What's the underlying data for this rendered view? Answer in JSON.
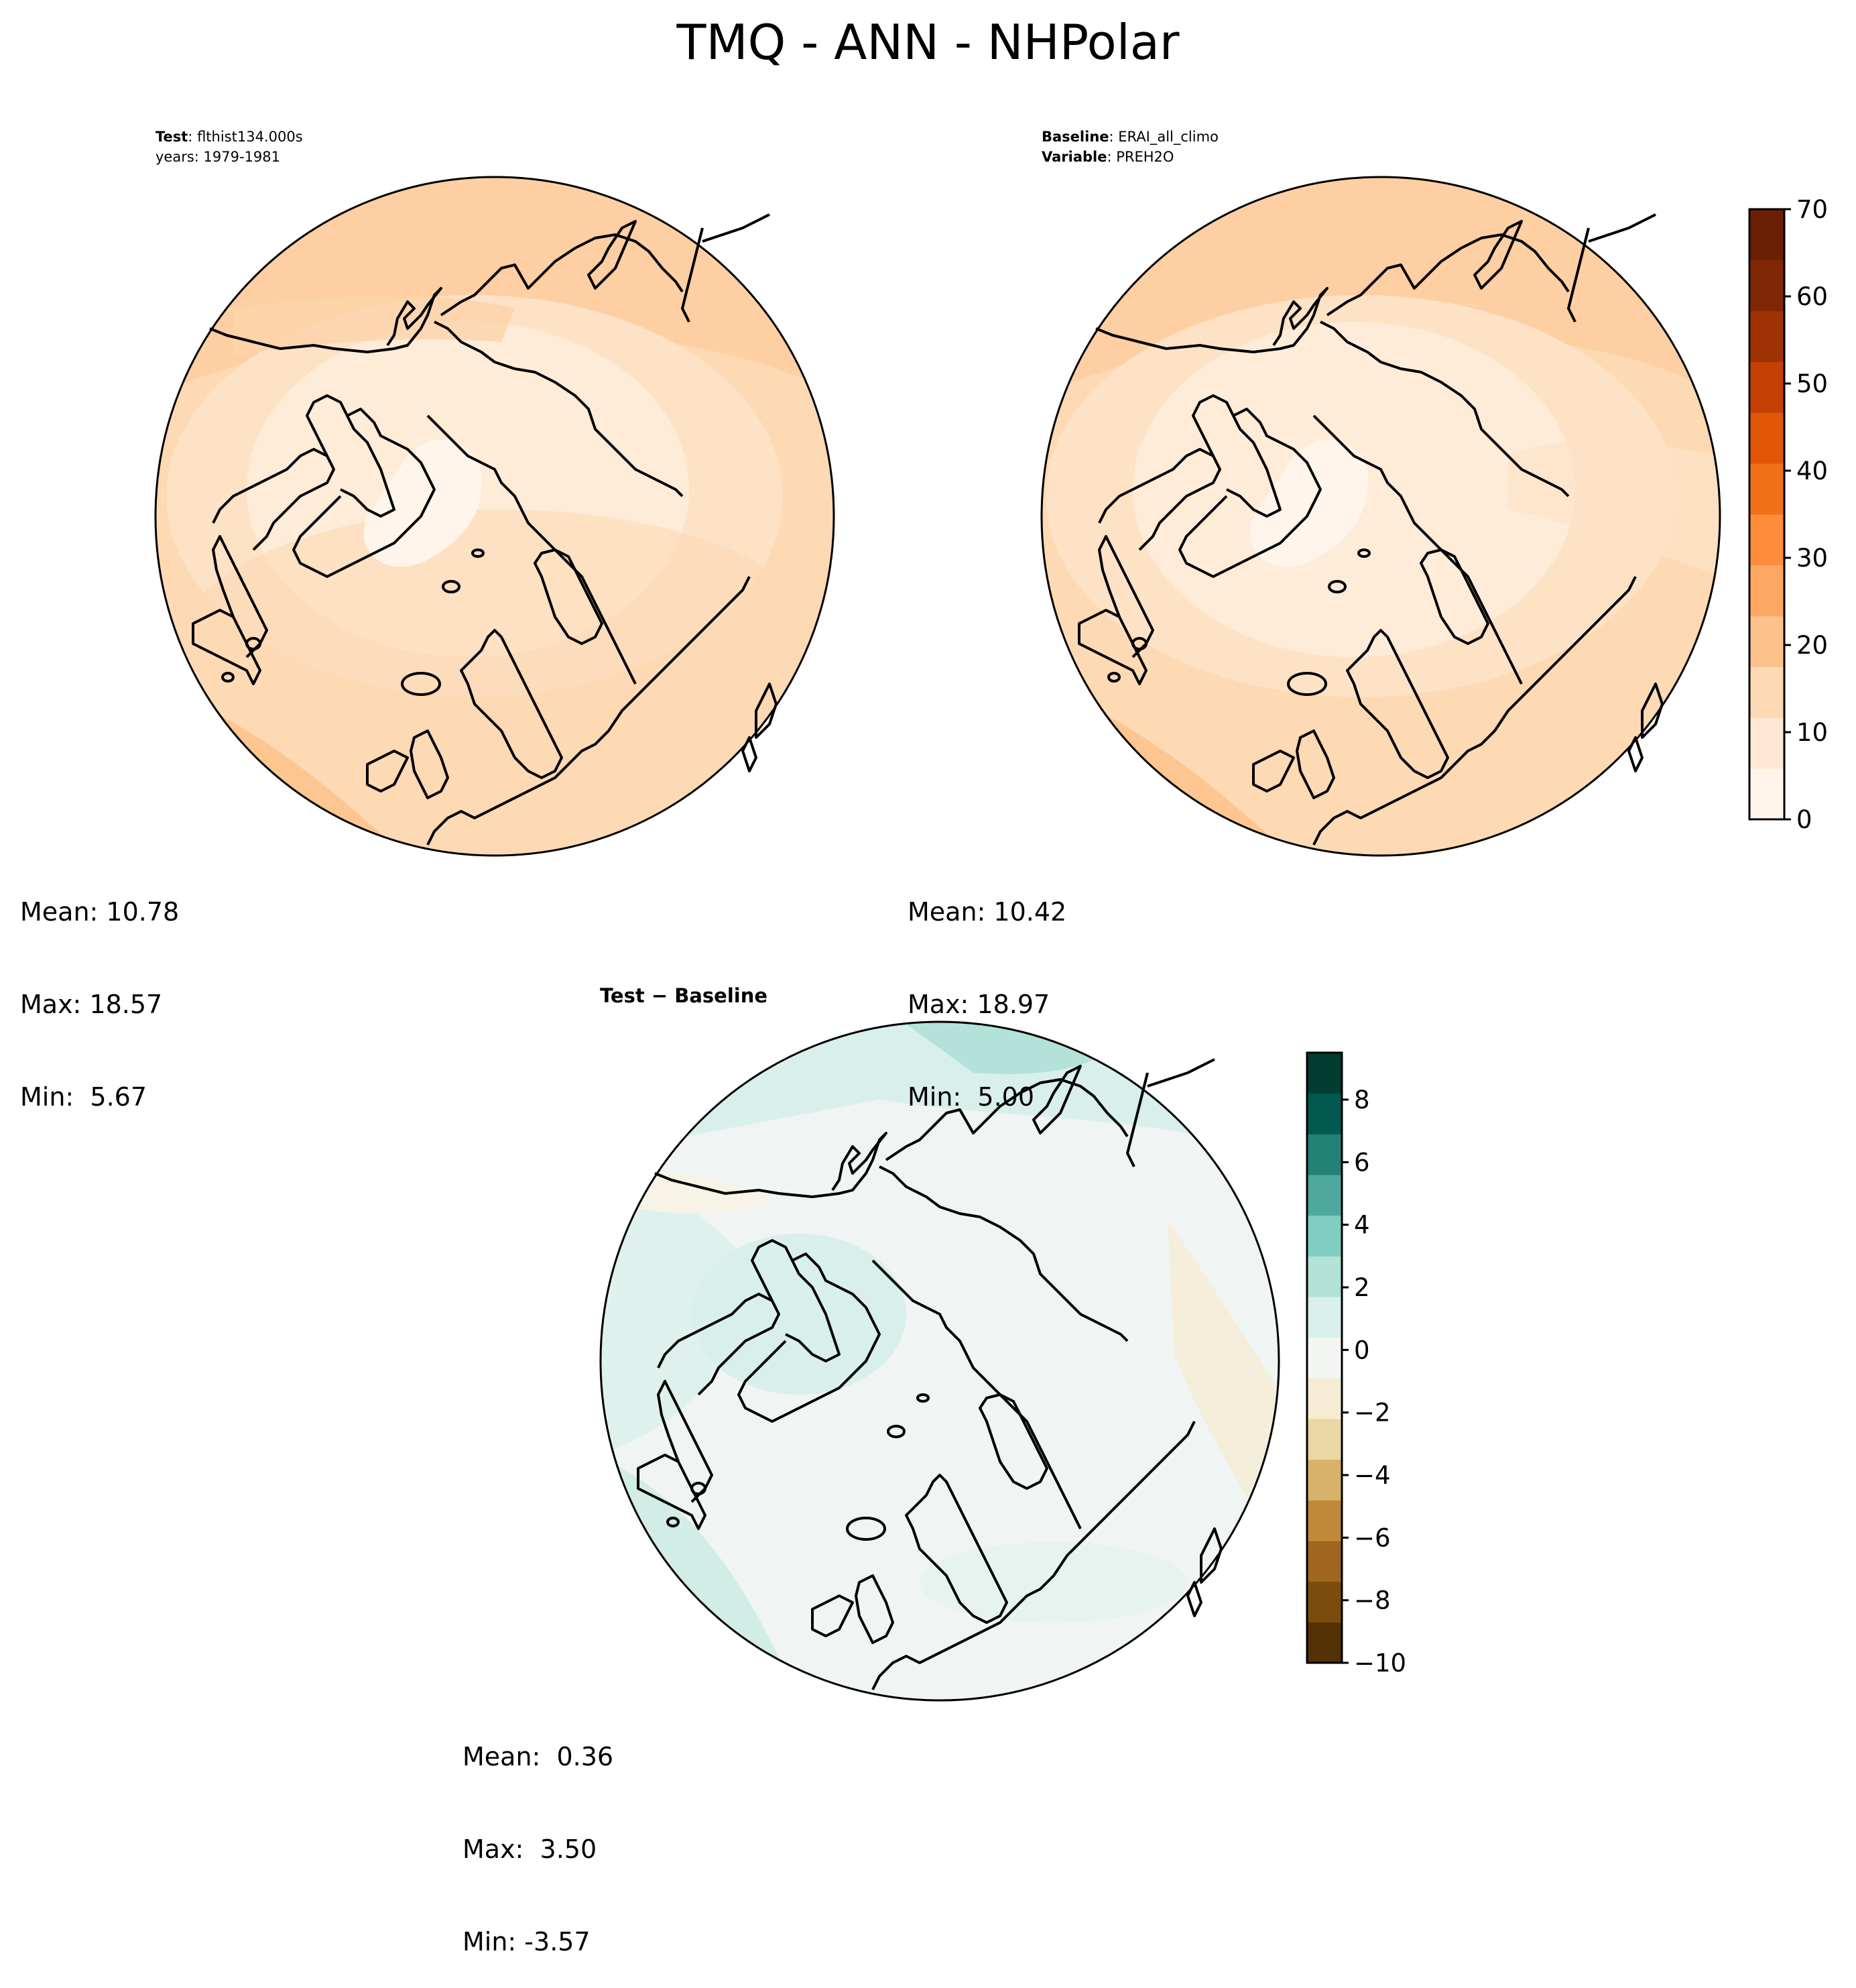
{
  "figure_title": "TMQ - ANN - NHPolar",
  "panels": {
    "test": {
      "label_bold": "Test",
      "label_value": ": flthist134.000s",
      "line2": "years: 1979-1981",
      "stats": {
        "mean": "Mean: 10.78",
        "max": "Max: 18.57",
        "min": "Min:  5.67"
      }
    },
    "baseline": {
      "label_bold": "Baseline",
      "label_value": ": ERAI_all_climo",
      "line2_bold": "Variable",
      "line2_value": ": PREH2O",
      "stats": {
        "mean": "Mean: 10.42",
        "max": "Max: 18.97",
        "min": "Min:  5.00"
      }
    },
    "diff": {
      "label_bold": "Test − Baseline",
      "stats": {
        "mean": "Mean:  0.36",
        "max": "Max:  3.50",
        "min": "Min: -3.57"
      }
    }
  },
  "colorbars": {
    "main": {
      "ticks": [
        "0",
        "10",
        "20",
        "30",
        "40",
        "50",
        "60",
        "70"
      ],
      "levels": [
        0,
        5,
        10,
        15,
        20,
        25,
        30,
        35,
        40,
        45,
        50,
        55,
        60,
        65,
        70
      ],
      "colors": [
        "#fff5eb",
        "#fee8d3",
        "#fdd9b4",
        "#fdc28c",
        "#fda762",
        "#fd8c3b",
        "#f3701b",
        "#e25608",
        "#c44103",
        "#9f3303",
        "#7f2704",
        "#6b2003"
      ],
      "range": [
        0,
        70
      ]
    },
    "diff": {
      "ticks": [
        "−10",
        "−8",
        "−6",
        "−4",
        "−2",
        "0",
        "2",
        "4",
        "6",
        "8"
      ],
      "range": [
        -10,
        9.5
      ],
      "colors": [
        "#543005",
        "#7b4c0c",
        "#a0661f",
        "#c0893a",
        "#d8b26a",
        "#ead8a4",
        "#f5ecd3",
        "#f3f5f2",
        "#d9efeb",
        "#b3e2d9",
        "#80cdc1",
        "#4ea89e",
        "#238176",
        "#02594f",
        "#003c30"
      ]
    }
  }
}
